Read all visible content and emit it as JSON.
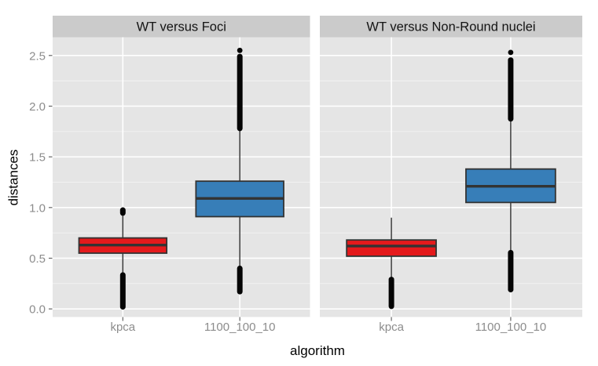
{
  "chart_data": {
    "type": "boxplot",
    "title": "",
    "xlabel": "algorithm",
    "ylabel": "distances",
    "ylim": [
      -0.08,
      2.68
    ],
    "yticks": [
      "0.0",
      "0.5",
      "1.0",
      "1.5",
      "2.0",
      "2.5"
    ],
    "ytick_values": [
      0.0,
      0.5,
      1.0,
      1.5,
      2.0,
      2.5
    ],
    "minor_tick_values": [
      0.25,
      0.75,
      1.25,
      1.75,
      2.25
    ],
    "categories": [
      "kpca",
      "1100_100_10"
    ],
    "grid": "white major and minor horizontal gridlines plus vertical category gridlines on gray panel",
    "legend_position": "none",
    "facets": [
      {
        "label": "WT versus Foci",
        "boxes": [
          {
            "category": "kpca",
            "fill": "#E41A1C",
            "q1": 0.55,
            "median": 0.63,
            "q3": 0.7,
            "whisker_low": 0.34,
            "whisker_high": 0.92,
            "outlier_columns": [
              [
                0.02,
                0.335
              ],
              [
                0.945,
                0.975
              ]
            ],
            "outlier_dots": []
          },
          {
            "category": "1100_100_10",
            "fill": "#377EB8",
            "q1": 0.91,
            "median": 1.09,
            "q3": 1.26,
            "whisker_low": 0.4,
            "whisker_high": 1.78,
            "outlier_columns": [
              [
                0.17,
                0.4
              ],
              [
                1.78,
                2.49
              ]
            ],
            "outlier_dots": [
              2.55
            ]
          }
        ]
      },
      {
        "label": "WT versus Non-Round nuclei",
        "boxes": [
          {
            "category": "kpca",
            "fill": "#E41A1C",
            "q1": 0.52,
            "median": 0.62,
            "q3": 0.68,
            "whisker_low": 0.29,
            "whisker_high": 0.9,
            "outlier_columns": [
              [
                0.025,
                0.29
              ]
            ],
            "outlier_dots": []
          },
          {
            "category": "1100_100_10",
            "fill": "#377EB8",
            "q1": 1.05,
            "median": 1.21,
            "q3": 1.38,
            "whisker_low": 0.56,
            "whisker_high": 1.87,
            "outlier_columns": [
              [
                0.19,
                0.555
              ],
              [
                1.875,
                2.455
              ]
            ],
            "outlier_dots": [
              2.53
            ]
          }
        ]
      }
    ],
    "style": {
      "strip_bg": "#CBCBCB",
      "strip_text": "#141414",
      "panel_bg": "#E5E5E5",
      "grid_major": "#FFFFFF",
      "grid_minor": "#FFFFFF",
      "box_stroke": "#333333",
      "whisker_stroke": "#3A3A3A",
      "outlier_color": "#050505",
      "tick_mark": "#666666",
      "tick_label": "#8C8C8C",
      "axis_title": "#000000"
    }
  }
}
